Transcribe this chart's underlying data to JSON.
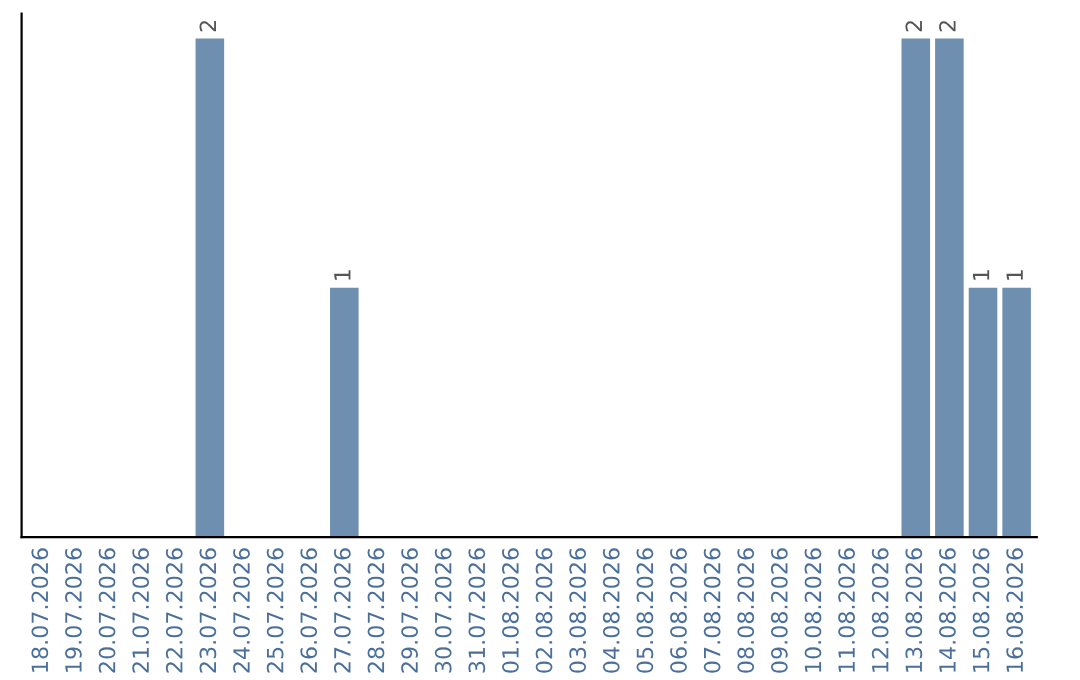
{
  "chart_data": {
    "type": "bar",
    "categories": [
      "18.07.2026",
      "19.07.2026",
      "20.07.2026",
      "21.07.2026",
      "22.07.2026",
      "23.07.2026",
      "24.07.2026",
      "25.07.2026",
      "26.07.2026",
      "27.07.2026",
      "28.07.2026",
      "29.07.2026",
      "30.07.2026",
      "31.07.2026",
      "01.08.2026",
      "02.08.2026",
      "03.08.2026",
      "04.08.2026",
      "05.08.2026",
      "06.08.2026",
      "07.08.2026",
      "08.08.2026",
      "09.08.2026",
      "10.08.2026",
      "11.08.2026",
      "12.08.2026",
      "13.08.2026",
      "14.08.2026",
      "15.08.2026",
      "16.08.2026"
    ],
    "values": [
      0,
      0,
      0,
      0,
      0,
      2,
      0,
      0,
      0,
      1,
      0,
      0,
      0,
      0,
      0,
      0,
      0,
      0,
      0,
      0,
      0,
      0,
      0,
      0,
      0,
      0,
      2,
      2,
      1,
      1
    ],
    "value_labels": [
      null,
      null,
      null,
      null,
      null,
      "2",
      null,
      null,
      null,
      "1",
      null,
      null,
      null,
      null,
      null,
      null,
      null,
      null,
      null,
      null,
      null,
      null,
      null,
      null,
      null,
      null,
      "2",
      "2",
      "1",
      "1"
    ],
    "color": "#6e8fb0",
    "ylim": [
      0,
      2.1
    ],
    "tick_labels": "x",
    "grid": false
  }
}
